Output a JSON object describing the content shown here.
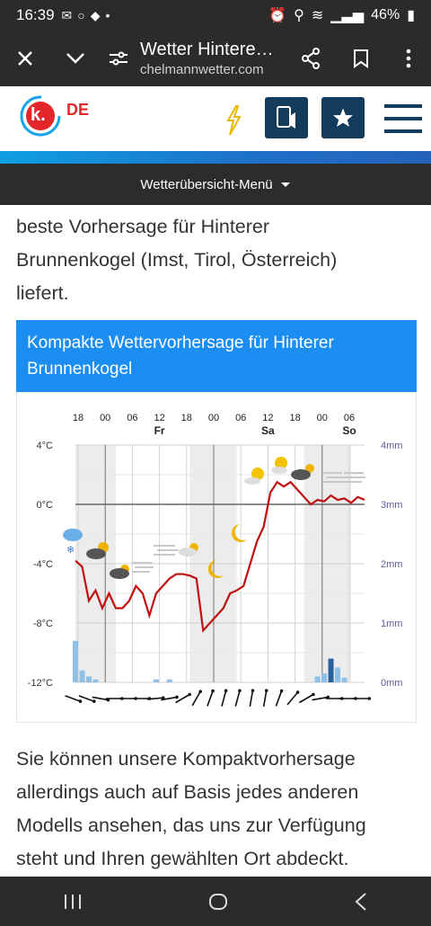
{
  "status": {
    "time": "16:39",
    "battery": "46%"
  },
  "browser": {
    "page_title": "Wetter Hintere…",
    "url": "chelmannwetter.com"
  },
  "site": {
    "logo_letter": "k.",
    "lang": "DE"
  },
  "nav": {
    "menu_label": "Wetterübersicht-Menü"
  },
  "intro_lines": [
    "beste Vorhersage für Hinterer",
    "Brunnenkogel (Imst, Tirol, Österreich)",
    "liefert."
  ],
  "box": {
    "title_lines": [
      "Kompakte Wettervorhersage für Hinterer",
      "Brunnenkogel"
    ]
  },
  "outro_lines": [
    "Sie können unsere Kompaktvorhersage",
    "allerdings auch auf Basis jedes anderen",
    "Modells ansehen, das uns zur Verfügung",
    "steht und Ihren gewählten Ort abdeckt."
  ],
  "colors": {
    "accent": "#1c8ef2",
    "temp_line": "#c01010",
    "precip": "#8fc0e8",
    "axis_right": "#5a5aa0"
  },
  "chart_data": {
    "type": "line",
    "hours": [
      "18",
      "00",
      "06",
      "12",
      "18",
      "00",
      "06",
      "12",
      "18",
      "00",
      "06"
    ],
    "days": [
      {
        "label": "Fr",
        "at": 12
      },
      {
        "label": "Sa",
        "at": 36
      },
      {
        "label": "So",
        "at": 57
      }
    ],
    "y_left_ticks": [
      "4°C",
      "0°C",
      "-4°C",
      "-8°C",
      "-12°C"
    ],
    "y_right_ticks": [
      "4mm",
      "3mm",
      "2mm",
      "1mm",
      "0mm"
    ],
    "ylim_temp": [
      -12,
      4
    ],
    "ylim_precip": [
      0,
      4
    ],
    "series": [
      {
        "values": [
          [
            0,
            -3.8
          ],
          [
            1,
            -4.2
          ],
          [
            2,
            -6.5
          ],
          [
            3,
            -5.8
          ],
          [
            4,
            -7
          ],
          [
            5,
            -6
          ],
          [
            6,
            -7
          ],
          [
            7,
            -7
          ],
          [
            8,
            -6.5
          ],
          [
            9,
            -5.5
          ],
          [
            10,
            -6
          ],
          [
            11,
            -7.5
          ],
          [
            12,
            -6
          ],
          [
            13,
            -5.5
          ],
          [
            14,
            -5
          ],
          [
            15,
            -4.7
          ],
          [
            16,
            -4.7
          ],
          [
            17,
            -4.8
          ],
          [
            18,
            -5
          ],
          [
            19,
            -8.5
          ],
          [
            20,
            -8
          ],
          [
            21,
            -7.5
          ],
          [
            22,
            -7
          ],
          [
            23,
            -6
          ],
          [
            24,
            -5.8
          ],
          [
            25,
            -5.5
          ],
          [
            26,
            -4
          ],
          [
            27,
            -2.5
          ],
          [
            28,
            -1.5
          ],
          [
            29,
            0.8
          ],
          [
            30,
            1.5
          ],
          [
            31,
            1.2
          ],
          [
            32,
            1.5
          ],
          [
            33,
            1
          ],
          [
            34,
            0.5
          ],
          [
            35,
            0
          ],
          [
            36,
            0.3
          ],
          [
            37,
            0.2
          ],
          [
            38,
            0.6
          ],
          [
            39,
            0.3
          ],
          [
            40,
            0.4
          ],
          [
            41,
            0.1
          ],
          [
            42,
            0.5
          ],
          [
            43,
            0.3
          ]
        ]
      }
    ],
    "precip": [
      [
        0,
        0.7
      ],
      [
        1,
        0.2
      ],
      [
        2,
        0.1
      ],
      [
        3,
        0.05
      ],
      [
        12,
        0.05
      ],
      [
        14,
        0.05
      ],
      [
        36,
        0.1
      ],
      [
        37,
        0.15
      ],
      [
        38,
        0.4
      ],
      [
        39,
        0.25
      ],
      [
        40,
        0.08
      ]
    ]
  }
}
